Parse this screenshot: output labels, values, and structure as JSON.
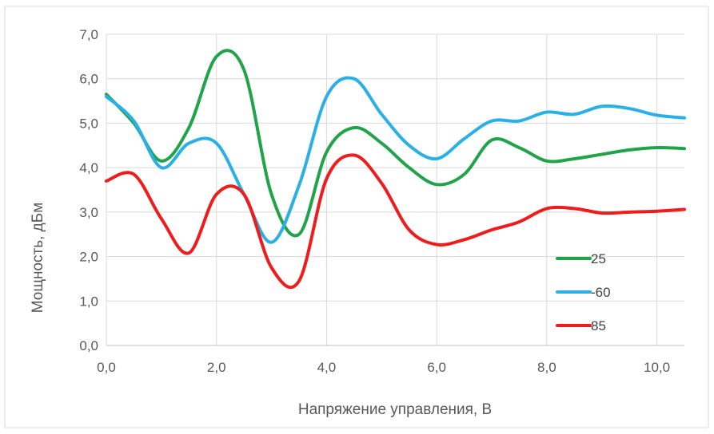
{
  "chart_data": {
    "type": "line",
    "title": "",
    "xlabel": "Напряжение управления, В",
    "ylabel": "Мощность, дБм",
    "xlim": [
      0,
      10.5
    ],
    "ylim": [
      0,
      7
    ],
    "x_ticks": [
      "0,0",
      "2,0",
      "4,0",
      "6,0",
      "8,0",
      "10,0"
    ],
    "x_tick_values": [
      0,
      2,
      4,
      6,
      8,
      10
    ],
    "y_ticks": [
      "0,0",
      "1,0",
      "2,0",
      "3,0",
      "4,0",
      "5,0",
      "6,0",
      "7,0"
    ],
    "y_tick_values": [
      0,
      1,
      2,
      3,
      4,
      5,
      6,
      7
    ],
    "grid": "vertical-and-horizontal",
    "legend_position": "right",
    "series": [
      {
        "name": "25",
        "color": "#21a34a",
        "points": [
          [
            0,
            5.65
          ],
          [
            0.5,
            5.0
          ],
          [
            1.0,
            4.15
          ],
          [
            1.5,
            4.9
          ],
          [
            2.0,
            6.5
          ],
          [
            2.5,
            6.2
          ],
          [
            3.0,
            3.4
          ],
          [
            3.5,
            2.5
          ],
          [
            4.0,
            4.35
          ],
          [
            4.5,
            4.9
          ],
          [
            5.0,
            4.55
          ],
          [
            5.5,
            4.0
          ],
          [
            6.0,
            3.62
          ],
          [
            6.5,
            3.85
          ],
          [
            7.0,
            4.62
          ],
          [
            7.5,
            4.45
          ],
          [
            8.0,
            4.15
          ],
          [
            8.5,
            4.2
          ],
          [
            9.0,
            4.3
          ],
          [
            9.5,
            4.4
          ],
          [
            10.0,
            4.45
          ],
          [
            10.5,
            4.43
          ]
        ]
      },
      {
        "name": "-60",
        "color": "#2ab0e6",
        "points": [
          [
            0,
            5.6
          ],
          [
            0.5,
            5.05
          ],
          [
            1.0,
            4.0
          ],
          [
            1.5,
            4.55
          ],
          [
            2.0,
            4.55
          ],
          [
            2.5,
            3.4
          ],
          [
            3.0,
            2.32
          ],
          [
            3.5,
            3.6
          ],
          [
            4.0,
            5.6
          ],
          [
            4.5,
            6.0
          ],
          [
            5.0,
            5.2
          ],
          [
            5.5,
            4.5
          ],
          [
            6.0,
            4.2
          ],
          [
            6.5,
            4.65
          ],
          [
            7.0,
            5.05
          ],
          [
            7.5,
            5.05
          ],
          [
            8.0,
            5.25
          ],
          [
            8.5,
            5.2
          ],
          [
            9.0,
            5.38
          ],
          [
            9.5,
            5.33
          ],
          [
            10.0,
            5.18
          ],
          [
            10.5,
            5.12
          ]
        ]
      },
      {
        "name": "85",
        "color": "#ee1c1c",
        "points": [
          [
            0,
            3.7
          ],
          [
            0.5,
            3.85
          ],
          [
            1.0,
            2.85
          ],
          [
            1.5,
            2.08
          ],
          [
            2.0,
            3.4
          ],
          [
            2.5,
            3.4
          ],
          [
            3.0,
            1.75
          ],
          [
            3.5,
            1.45
          ],
          [
            4.0,
            3.75
          ],
          [
            4.5,
            4.28
          ],
          [
            5.0,
            3.65
          ],
          [
            5.5,
            2.6
          ],
          [
            6.0,
            2.27
          ],
          [
            6.5,
            2.38
          ],
          [
            7.0,
            2.6
          ],
          [
            7.5,
            2.78
          ],
          [
            8.0,
            3.08
          ],
          [
            8.5,
            3.08
          ],
          [
            9.0,
            2.98
          ],
          [
            9.5,
            3.0
          ],
          [
            10.0,
            3.02
          ],
          [
            10.5,
            3.06
          ]
        ]
      }
    ]
  },
  "legend": {
    "items": [
      {
        "label": "25",
        "color": "#21a34a"
      },
      {
        "label": "-60",
        "color": "#2ab0e6"
      },
      {
        "label": "85",
        "color": "#ee1c1c"
      }
    ]
  },
  "colors": {
    "grid": "#d9d9d9",
    "frame": "#d9d9d9",
    "text": "#595959"
  }
}
